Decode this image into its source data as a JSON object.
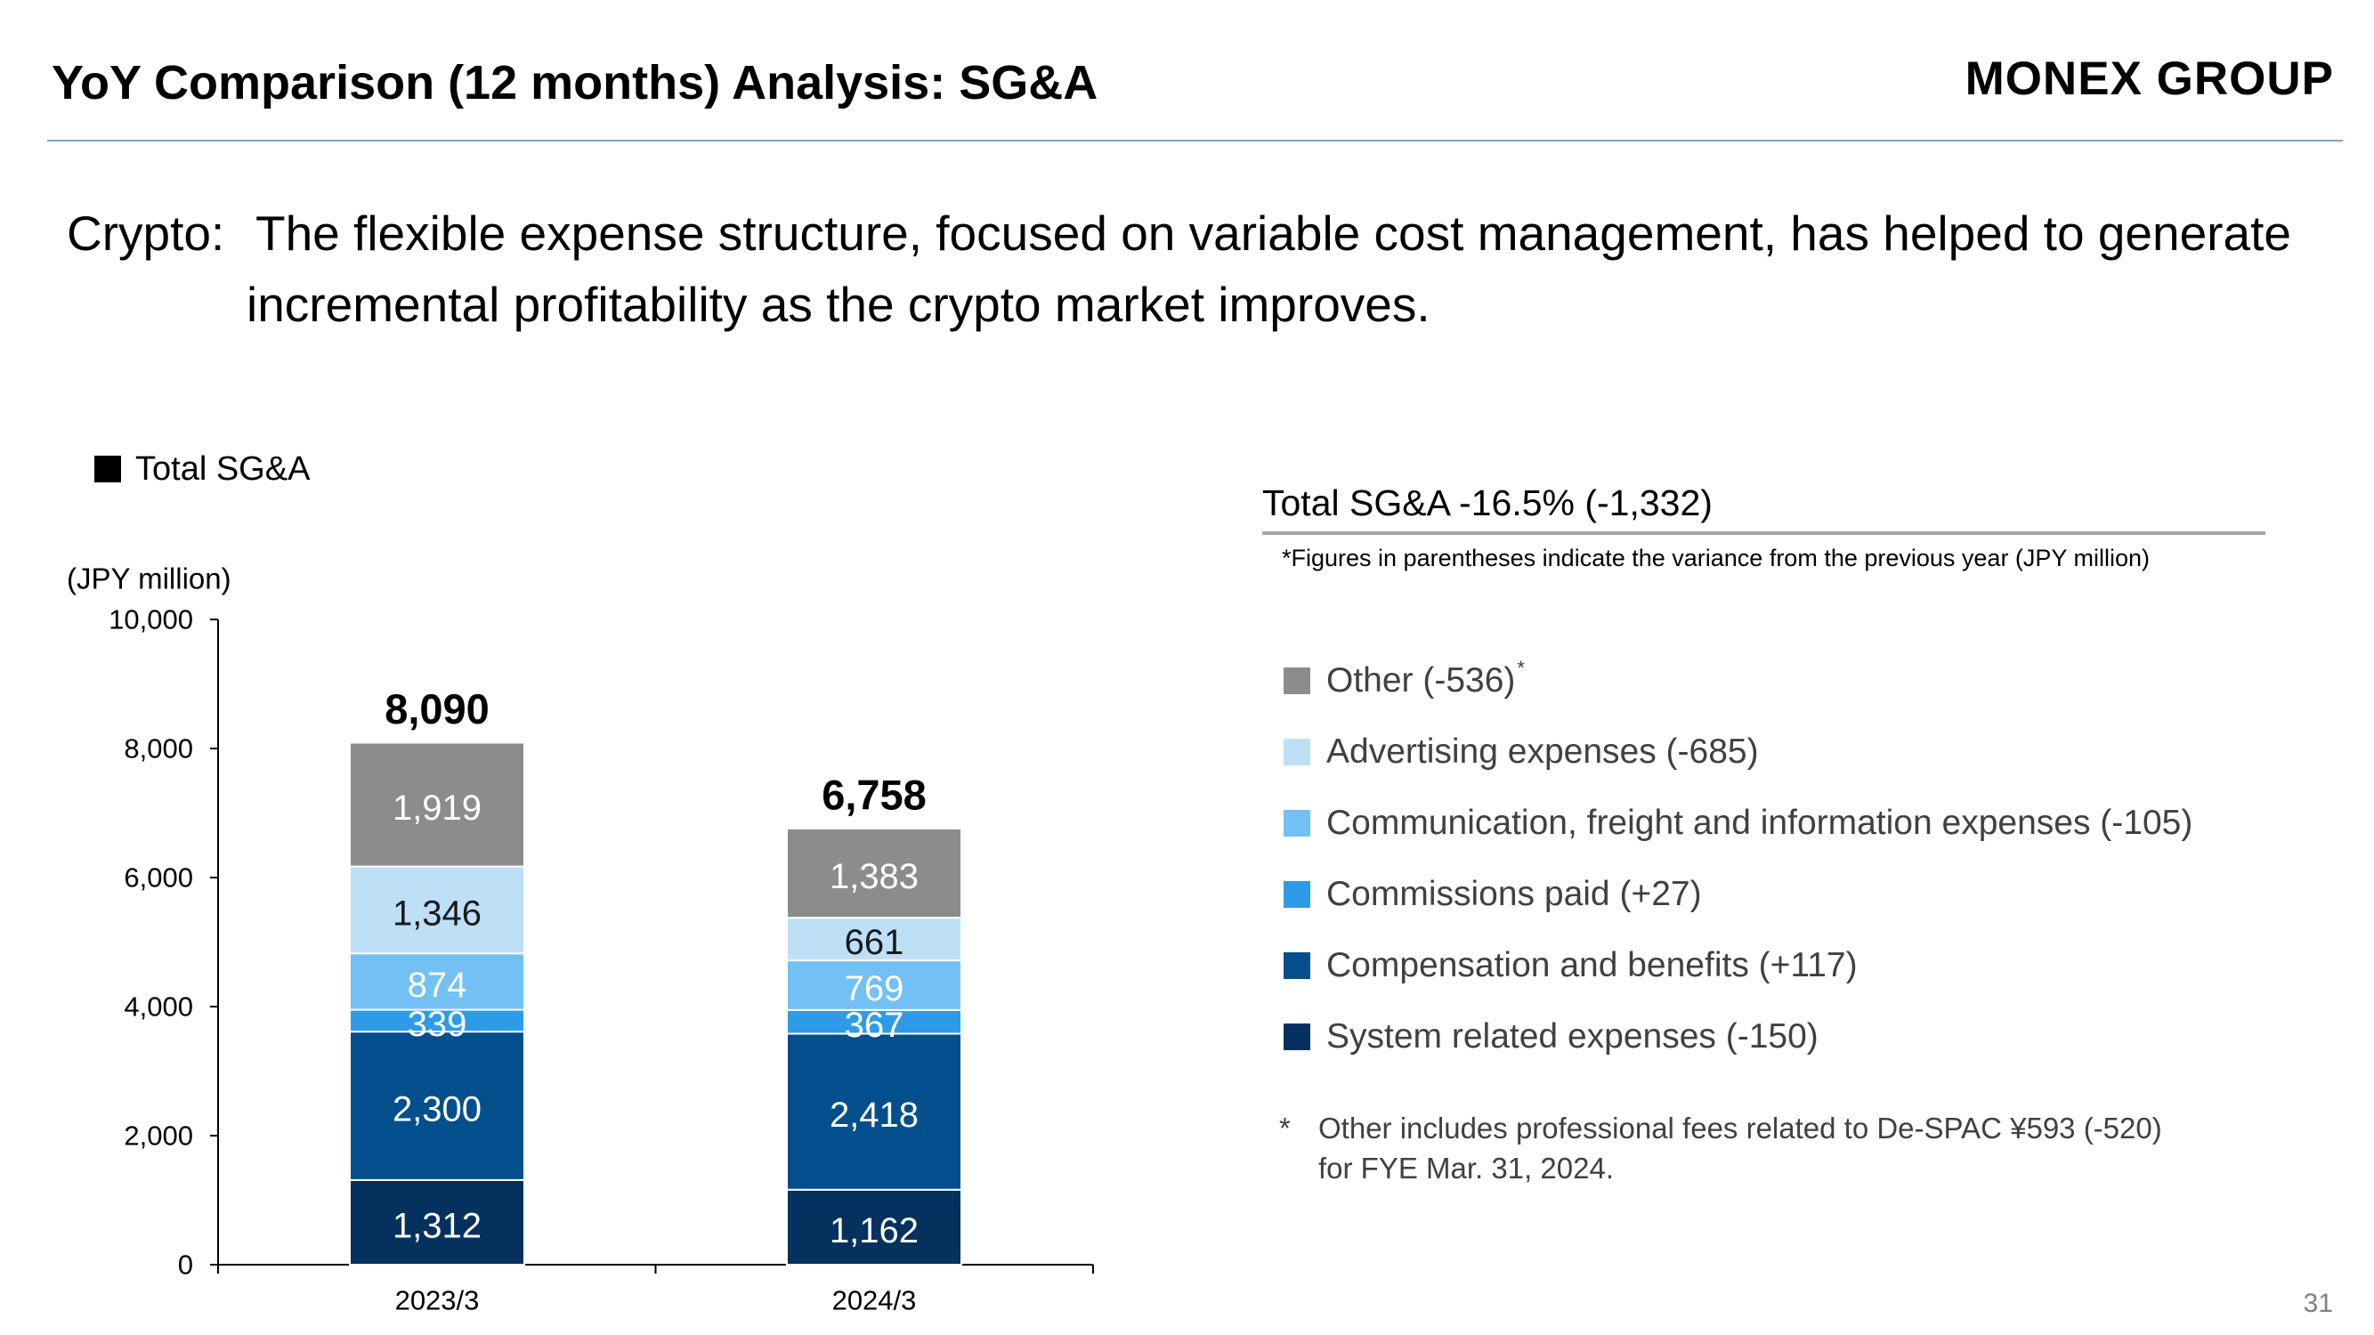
{
  "header": {
    "title": "YoY Comparison (12 months) Analysis: SG&A",
    "logo_text": "MONEX GROUP"
  },
  "headline": {
    "label": "Crypto:",
    "line1": "The flexible expense structure, focused on variable cost management, has helped to generate",
    "line2": "incremental profitability as the crypto market improves."
  },
  "legend": {
    "label": "Total SG&A"
  },
  "panel": {
    "heading": "Total SG&A -16.5% (-1,332)",
    "note": "*Figures in parentheses indicate the variance from the previous year (JPY million)",
    "items": [
      {
        "label": "Other (-536)",
        "mark": "*",
        "color": "#8c8c8c"
      },
      {
        "label": "Advertising expenses (-685)",
        "mark": "",
        "color": "#bde0f7"
      },
      {
        "label": "Communication, freight and information expenses (-105)",
        "mark": "",
        "color": "#73c0f4"
      },
      {
        "label": "Commissions paid (+27)",
        "mark": "",
        "color": "#2e9be8"
      },
      {
        "label": "Compensation and benefits (+117)",
        "mark": "",
        "color": "#034f8d"
      },
      {
        "label": "System related expenses (-150)",
        "mark": "",
        "color": "#04315d"
      }
    ],
    "footnote": {
      "star": "*",
      "line1": "Other includes professional fees related to De-SPAC ¥593 (-520)",
      "line2": "for FYE Mar. 31, 2024."
    }
  },
  "page_number": "31",
  "chart_data": {
    "type": "bar",
    "stacked": true,
    "ylabel": "(JPY million)",
    "ylim": [
      0,
      10000
    ],
    "yticks": [
      0,
      2000,
      4000,
      6000,
      8000,
      10000
    ],
    "ytick_labels": [
      "0",
      "2,000",
      "4,000",
      "6,000",
      "8,000",
      "10,000"
    ],
    "categories": [
      "2023/3",
      "2024/3"
    ],
    "totals": [
      8090,
      6758
    ],
    "total_labels": [
      "8,090",
      "6,758"
    ],
    "series": [
      {
        "name": "System related expenses",
        "color": "#04315d",
        "values": [
          1312,
          1162
        ],
        "labels": [
          "1,312",
          "1,162"
        ]
      },
      {
        "name": "Compensation and benefits",
        "color": "#034f8d",
        "values": [
          2300,
          2418
        ],
        "labels": [
          "2,300",
          "2,418"
        ]
      },
      {
        "name": "Commissions paid",
        "color": "#2e9be8",
        "values": [
          339,
          367
        ],
        "labels": [
          "339",
          "367"
        ]
      },
      {
        "name": "Communication, freight and information expenses",
        "color": "#73c0f4",
        "values": [
          874,
          769
        ],
        "labels": [
          "874",
          "769"
        ]
      },
      {
        "name": "Advertising expenses",
        "color": "#bde0f7",
        "values": [
          1346,
          661
        ],
        "labels": [
          "1,346",
          "661"
        ]
      },
      {
        "name": "Other",
        "color": "#8c8c8c",
        "values": [
          1919,
          1383
        ],
        "labels": [
          "1,919",
          "1,383"
        ]
      }
    ],
    "grid": false,
    "legend": "right"
  }
}
